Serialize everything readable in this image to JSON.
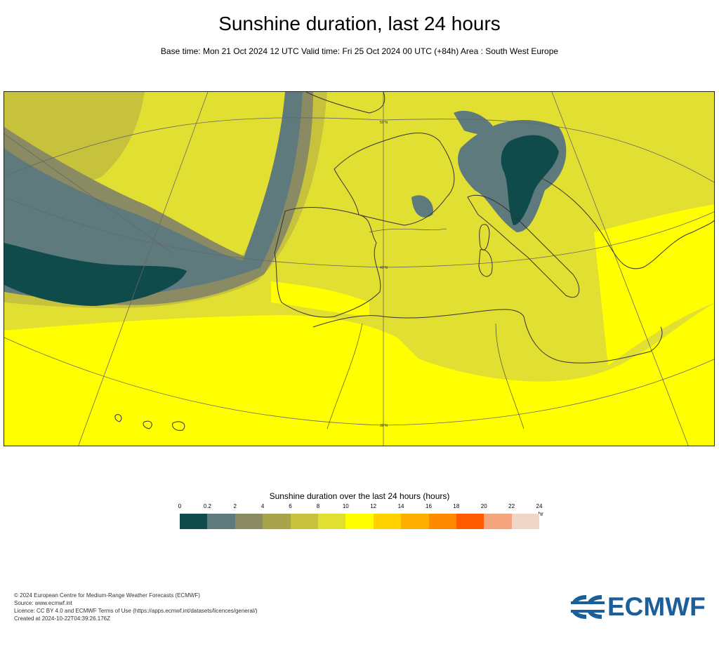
{
  "title": "Sunshine duration, last 24 hours",
  "subtitle": "Base time: Mon 21 Oct 2024 12 UTC Valid time: Fri 25 Oct 2024 00 UTC (+84h) Area : South West Europe",
  "map": {
    "graticule_labels": [
      "50°N",
      "40°N",
      "30°N"
    ],
    "colors": {
      "c0_02": "#0f4b4b",
      "c02_2": "#5f7a7d",
      "c2_4": "#8a8a63",
      "c4_6": "#a8a44d",
      "c6_8": "#c6c23c",
      "c8_10": "#e2df33",
      "c10_12": "#ffff00",
      "land_line": "#333333"
    }
  },
  "legend": {
    "title": "Sunshine duration over the last 24 hours (hours)",
    "ticks": [
      "0",
      "0.2",
      "2",
      "4",
      "6",
      "8",
      "10",
      "12",
      "14",
      "16",
      "18",
      "20",
      "22",
      "24"
    ],
    "unit": "-hr",
    "swatches": [
      "#0f4b4b",
      "#5f7a7d",
      "#8a8a63",
      "#a8a44d",
      "#c6c23c",
      "#e2df33",
      "#ffff00",
      "#ffd200",
      "#ffae00",
      "#ff8a00",
      "#ff5a00",
      "#f5a57e",
      "#efd6c9"
    ]
  },
  "footer": {
    "line1": "© 2024 European Centre for Medium-Range Weather Forecasts (ECMWF)",
    "line2": "Source: www.ecmwf.int",
    "line3": "Licence: CC BY 4.0 and ECMWF Terms of Use (https://apps.ecmwf.int/datasets/licences/general/)",
    "line4": "Created at 2024-10-22T04:39:26.176Z"
  },
  "logo": {
    "text": "ECMWF",
    "color": "#1a5e9a"
  }
}
